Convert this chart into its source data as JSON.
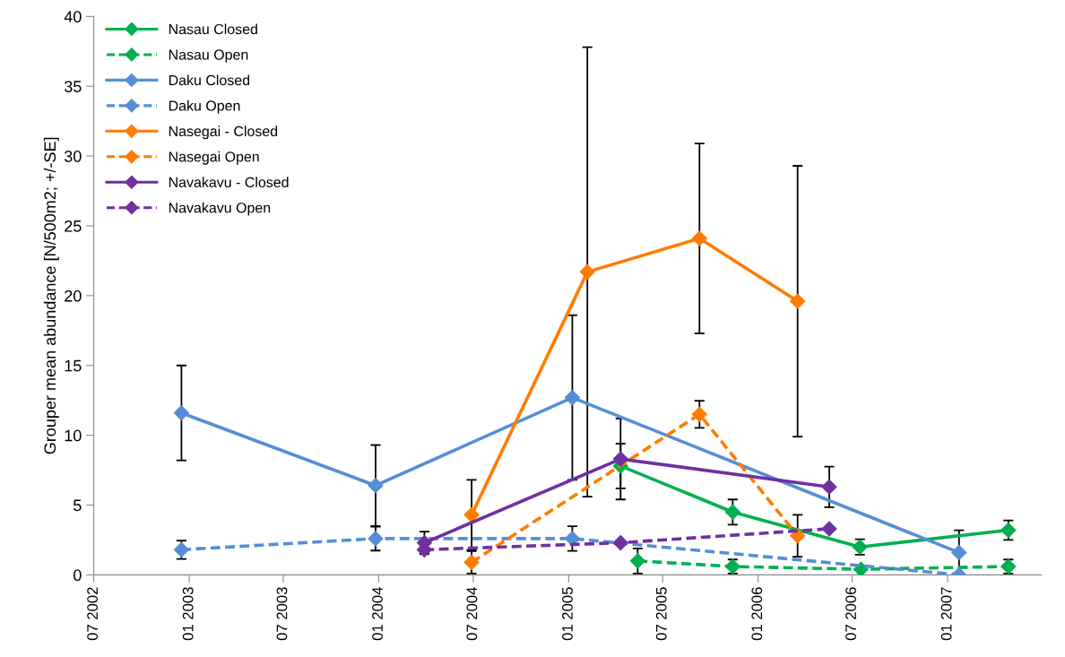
{
  "chart_data": {
    "type": "line",
    "ylabel": "Grouper mean abundance [N/500m2; +/-SE]",
    "xlim": [
      "2002-07-01",
      "2007-07-01"
    ],
    "xticks": [
      {
        "value": "2002-07-01",
        "label": "07 2002"
      },
      {
        "value": "2003-01-01",
        "label": "01 2003"
      },
      {
        "value": "2003-07-01",
        "label": "07 2003"
      },
      {
        "value": "2004-01-01",
        "label": "01 2004"
      },
      {
        "value": "2004-07-01",
        "label": "07 2004"
      },
      {
        "value": "2005-01-01",
        "label": "01 2005"
      },
      {
        "value": "2005-07-01",
        "label": "07 2005"
      },
      {
        "value": "2006-01-01",
        "label": "01 2006"
      },
      {
        "value": "2006-07-01",
        "label": "07 2006"
      },
      {
        "value": "2007-01-01",
        "label": "01 2007"
      }
    ],
    "ylim": [
      0,
      40
    ],
    "yticks": [
      0,
      5,
      10,
      15,
      20,
      25,
      30,
      35,
      40
    ],
    "grid": false,
    "legend": "top left",
    "marker": "diamond",
    "series": [
      {
        "name": "Nasau Closed",
        "color": "#00b050",
        "line_style": "solid",
        "x": [
          "2005-04-11",
          "2005-11-13",
          "2006-07-16",
          "2007-04-28"
        ],
        "values": [
          7.8,
          4.5,
          2.0,
          3.2
        ],
        "errors": [
          1.6,
          0.9,
          0.55,
          0.7
        ]
      },
      {
        "name": "Nasau Open",
        "color": "#00b050",
        "line_style": "dashed",
        "x": [
          "2005-05-14",
          "2005-11-13",
          "2006-07-18",
          "2007-04-28"
        ],
        "values": [
          1.0,
          0.6,
          0.4,
          0.6
        ],
        "errors": [
          0.9,
          0.5,
          null,
          0.5
        ]
      },
      {
        "name": "Daku Closed",
        "color": "#558ed5",
        "line_style": "solid",
        "x": [
          "2002-12-17",
          "2003-12-26",
          "2005-01-08",
          "2007-01-23"
        ],
        "values": [
          11.6,
          6.4,
          12.7,
          1.6
        ],
        "errors": [
          3.4,
          2.9,
          5.9,
          1.6
        ]
      },
      {
        "name": "Daku Open",
        "color": "#558ed5",
        "line_style": "dashed",
        "x": [
          "2002-12-17",
          "2003-12-26",
          "2005-01-08",
          "2007-01-23"
        ],
        "values": [
          1.8,
          2.6,
          2.6,
          0.0
        ],
        "errors": [
          0.66,
          0.86,
          0.88,
          null
        ]
      },
      {
        "name": "Nasegai - Closed",
        "color": "#ff7c00",
        "line_style": "solid",
        "x": [
          "2004-06-28",
          "2005-02-06",
          "2005-09-10",
          "2006-03-18"
        ],
        "values": [
          4.3,
          21.7,
          24.1,
          19.6
        ],
        "errors": [
          2.5,
          16.1,
          6.8,
          9.7
        ]
      },
      {
        "name": "Nasegai Open",
        "color": "#ff7c00",
        "line_style": "dashed",
        "x": [
          "2004-06-28",
          "2005-09-10",
          "2006-03-18"
        ],
        "values": [
          0.9,
          11.5,
          2.8
        ],
        "errors": [
          0.8,
          0.97,
          1.5
        ]
      },
      {
        "name": "Navakavu - Closed",
        "color": "#7030a0",
        "line_style": "solid",
        "x": [
          "2004-03-29",
          "2005-04-11",
          "2006-05-18"
        ],
        "values": [
          2.3,
          8.3,
          6.3
        ],
        "errors": [
          0.8,
          2.9,
          1.45
        ]
      },
      {
        "name": "Navakavu Open",
        "color": "#7030a0",
        "line_style": "dashed",
        "x": [
          "2004-03-29",
          "2005-04-11",
          "2006-05-18"
        ],
        "values": [
          1.8,
          2.3,
          3.3
        ]
      }
    ]
  }
}
